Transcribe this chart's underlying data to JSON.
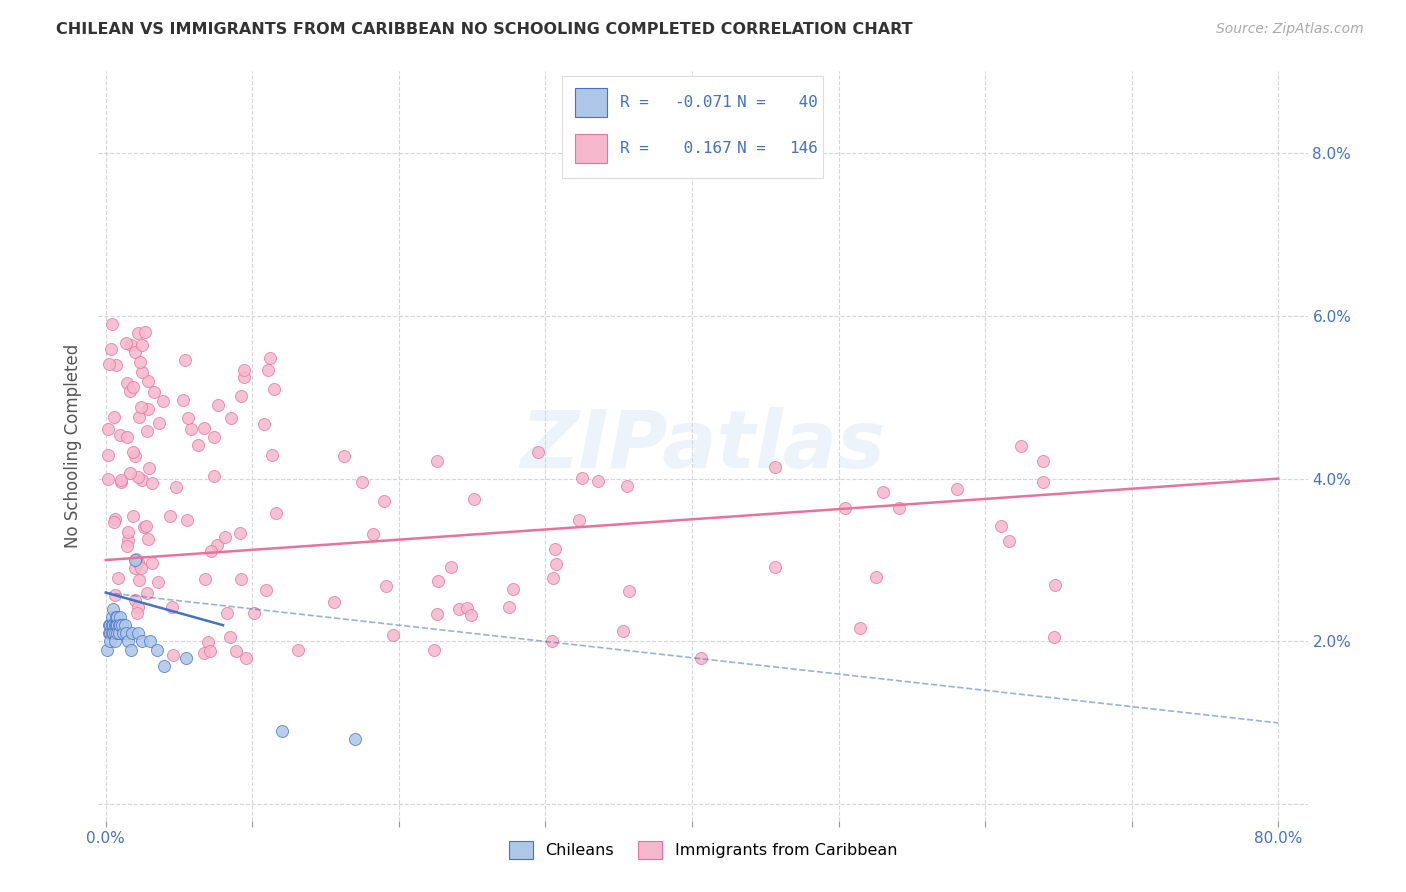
{
  "title": "CHILEAN VS IMMIGRANTS FROM CARIBBEAN NO SCHOOLING COMPLETED CORRELATION CHART",
  "source": "Source: ZipAtlas.com",
  "ylabel": "No Schooling Completed",
  "chileans_color": "#aec6e8",
  "caribbean_color": "#f4b8cc",
  "chileans_edge_color": "#4472c4",
  "caribbean_edge_color": "#e8729a",
  "chileans_line_color": "#4472c4",
  "caribbean_line_color": "#e8729a",
  "legend_text_color": "#4472c4",
  "background_color": "#ffffff",
  "watermark": "ZIPatlas",
  "grid_color": "#cccccc",
  "tick_color": "#4472c4",
  "title_color": "#333333",
  "source_color": "#aaaaaa",
  "ylabel_color": "#555555",
  "R_chileans": "-0.071",
  "N_chileans": "40",
  "R_caribbean": "0.167",
  "N_caribbean": "146",
  "xlim": [
    -0.005,
    0.82
  ],
  "ylim": [
    -0.002,
    0.09
  ],
  "xtick_vals": [
    0.0,
    0.1,
    0.2,
    0.3,
    0.4,
    0.5,
    0.6,
    0.7,
    0.8
  ],
  "xtick_labels": [
    "0.0%",
    "",
    "",
    "",
    "",
    "",
    "",
    "",
    "80.0%"
  ],
  "ytick_vals": [
    0.0,
    0.02,
    0.04,
    0.06,
    0.08
  ],
  "ytick_labels": [
    "",
    "2.0%",
    "4.0%",
    "6.0%",
    "8.0%"
  ]
}
